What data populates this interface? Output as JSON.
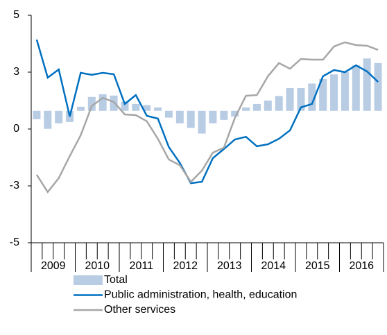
{
  "chart_data": {
    "type": "bar-line",
    "categories": [
      null,
      null,
      null,
      null,
      null,
      null,
      null,
      null,
      null,
      null,
      null,
      null,
      null,
      null,
      null,
      null,
      null,
      null,
      null,
      null,
      null,
      null,
      null,
      null,
      null,
      null,
      null,
      null,
      null,
      null,
      null,
      null
    ],
    "years": [
      "2009",
      "2010",
      "2011",
      "2012",
      "2013",
      "2014",
      "2015",
      "2016"
    ],
    "ylim": [
      -5,
      5
    ],
    "yticks": [
      -5,
      {
        "value": -2.5,
        "label": "-3"
      },
      0,
      {
        "value": 2.5,
        "label": "3"
      },
      5
    ],
    "y2lim": [
      -5.8,
      4.2
    ],
    "grid": false,
    "legend": "bottom",
    "series": [
      {
        "name": "Total",
        "type": "bar",
        "axis": "y2",
        "color": "#b8cce4",
        "values": [
          -0.37,
          -0.79,
          -0.55,
          -0.49,
          0.18,
          0.61,
          0.73,
          0.67,
          0.4,
          0.3,
          0.25,
          0.15,
          -0.3,
          -0.55,
          -0.75,
          -1.0,
          -0.55,
          -0.4,
          -0.25,
          0.15,
          0.3,
          0.45,
          0.65,
          1.0,
          1.0,
          1.2,
          1.4,
          1.6,
          1.7,
          2.0,
          2.3,
          2.1
        ]
      },
      {
        "name": "Public administration, health, education",
        "type": "line",
        "color": "#0070c0",
        "values": [
          3.93,
          2.26,
          2.62,
          0.55,
          2.47,
          2.38,
          2.47,
          2.41,
          1.1,
          1.49,
          0.58,
          0.46,
          -0.79,
          -1.49,
          -2.38,
          -2.32,
          -1.28,
          -0.88,
          -0.46,
          -0.34,
          -0.76,
          -0.67,
          -0.43,
          -0.06,
          0.95,
          1.1,
          2.32,
          2.59,
          2.5,
          2.8,
          2.53,
          2.07
        ]
      },
      {
        "name": "Other services",
        "type": "line",
        "color": "#a6a6a6",
        "values": [
          -2.01,
          -2.77,
          -2.16,
          -1.19,
          -0.27,
          1.01,
          1.37,
          1.19,
          0.64,
          0.61,
          0.34,
          -0.43,
          -1.34,
          -1.59,
          -2.32,
          -1.83,
          -1.04,
          -0.82,
          0.49,
          1.46,
          1.49,
          2.32,
          2.9,
          2.65,
          3.08,
          3.05,
          3.05,
          3.63,
          3.81,
          3.69,
          3.66,
          3.48
        ]
      }
    ]
  }
}
